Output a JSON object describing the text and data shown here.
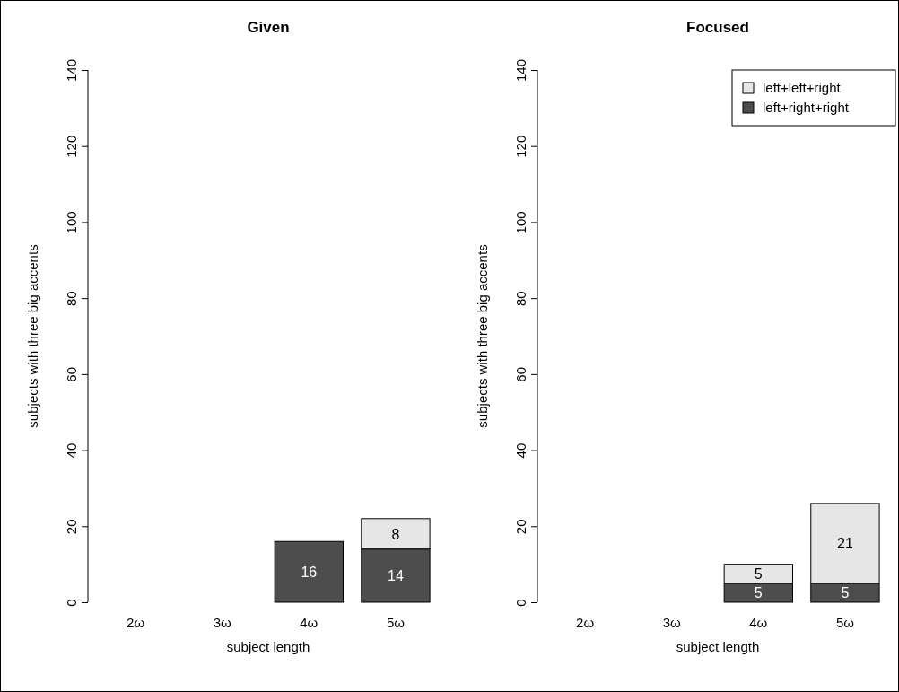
{
  "chart_data": [
    {
      "type": "bar",
      "title": "Given",
      "xlabel": "subject length",
      "ylabel": "subjects with three big accents",
      "categories": [
        "2ω",
        "3ω",
        "4ω",
        "5ω"
      ],
      "stacked": true,
      "ylim": [
        0,
        140
      ],
      "yticks": [
        0,
        20,
        40,
        60,
        80,
        100,
        120,
        140
      ],
      "legend": false,
      "series": [
        {
          "color": "#4d4d4d",
          "values": [
            0,
            0,
            16,
            14
          ],
          "value_labels": [
            null,
            null,
            "16",
            "14"
          ]
        },
        {
          "color": "#e6e6e6",
          "values": [
            0,
            0,
            0,
            8
          ],
          "value_labels": [
            null,
            null,
            null,
            "8"
          ]
        }
      ]
    },
    {
      "type": "bar",
      "title": "Focused",
      "xlabel": "subject length",
      "ylabel": "subjects with three big accents",
      "categories": [
        "2ω",
        "3ω",
        "4ω",
        "5ω"
      ],
      "stacked": true,
      "ylim": [
        0,
        140
      ],
      "yticks": [
        0,
        20,
        40,
        60,
        80,
        100,
        120,
        140
      ],
      "legend": "top right",
      "series": [
        {
          "name": "left+right+right",
          "color": "#4d4d4d",
          "values": [
            0,
            0,
            5,
            5
          ],
          "value_labels": [
            null,
            null,
            "5",
            "5"
          ]
        },
        {
          "name": "left+left+right",
          "color": "#e6e6e6",
          "values": [
            0,
            0,
            5,
            21
          ],
          "value_labels": [
            null,
            null,
            "5",
            "21"
          ]
        }
      ]
    }
  ]
}
